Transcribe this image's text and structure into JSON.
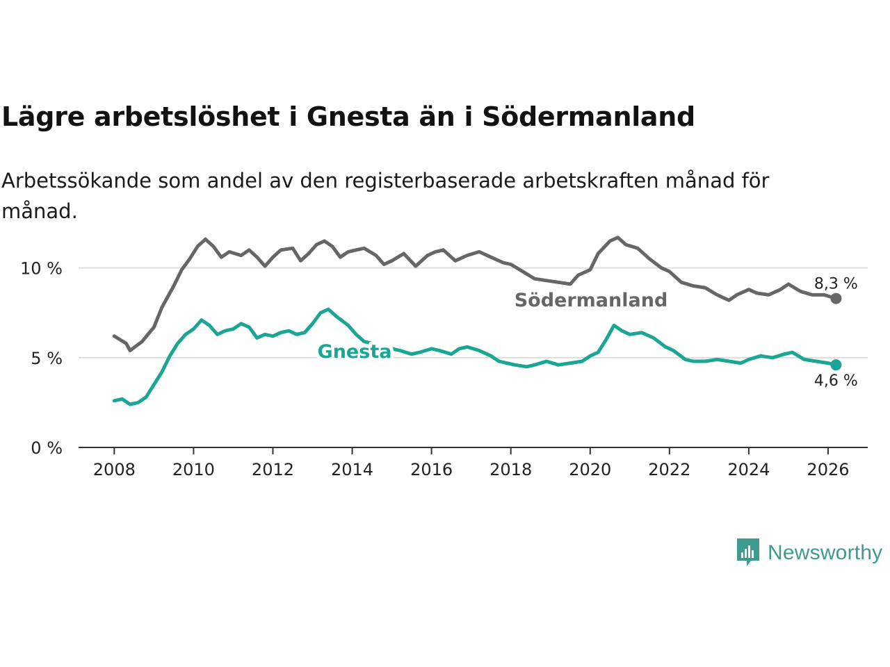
{
  "title": "Lägre arbetslöshet i Gnesta än i Södermanland",
  "subtitle": "Arbetssökande som andel av den registerbaserade arbetskraften månad för månad.",
  "brand": "Newsworthy",
  "colors": {
    "gnesta": "#1aa595",
    "sodermanland": "#666666",
    "axis": "#333333",
    "grid": "#dddddd"
  },
  "chart_data": {
    "type": "line",
    "title": "Lägre arbetslöshet i Gnesta än i Södermanland",
    "xlabel": "",
    "ylabel": "",
    "ylim": [
      0,
      12
    ],
    "xlim": [
      2007.1,
      2027.0
    ],
    "x_ticks": [
      2008,
      2010,
      2012,
      2014,
      2016,
      2018,
      2020,
      2022,
      2024,
      2026
    ],
    "x_tick_labels": [
      "2008",
      "2010",
      "2012",
      "2014",
      "2016",
      "2018",
      "2020",
      "2022",
      "2024",
      "2026"
    ],
    "y_ticks": [
      0,
      5,
      10
    ],
    "y_tick_labels": [
      "0 %",
      "5 %",
      "10 %"
    ],
    "grid": "horizontal",
    "series": [
      {
        "name": "Södermanland",
        "color": "#666666",
        "end_label": "8,3 %",
        "points": [
          [
            2008.0,
            6.2
          ],
          [
            2008.3,
            5.8
          ],
          [
            2008.4,
            5.4
          ],
          [
            2008.7,
            5.9
          ],
          [
            2009.0,
            6.7
          ],
          [
            2009.2,
            7.8
          ],
          [
            2009.5,
            9.0
          ],
          [
            2009.7,
            9.9
          ],
          [
            2009.9,
            10.5
          ],
          [
            2010.1,
            11.2
          ],
          [
            2010.3,
            11.6
          ],
          [
            2010.5,
            11.2
          ],
          [
            2010.7,
            10.6
          ],
          [
            2010.9,
            10.9
          ],
          [
            2011.2,
            10.7
          ],
          [
            2011.4,
            11.0
          ],
          [
            2011.6,
            10.6
          ],
          [
            2011.8,
            10.1
          ],
          [
            2012.0,
            10.6
          ],
          [
            2012.2,
            11.0
          ],
          [
            2012.5,
            11.1
          ],
          [
            2012.7,
            10.4
          ],
          [
            2012.9,
            10.8
          ],
          [
            2013.1,
            11.3
          ],
          [
            2013.3,
            11.5
          ],
          [
            2013.5,
            11.2
          ],
          [
            2013.7,
            10.6
          ],
          [
            2013.9,
            10.9
          ],
          [
            2014.1,
            11.0
          ],
          [
            2014.3,
            11.1
          ],
          [
            2014.6,
            10.7
          ],
          [
            2014.8,
            10.2
          ],
          [
            2015.0,
            10.4
          ],
          [
            2015.3,
            10.8
          ],
          [
            2015.6,
            10.1
          ],
          [
            2015.9,
            10.7
          ],
          [
            2016.1,
            10.9
          ],
          [
            2016.3,
            11.0
          ],
          [
            2016.6,
            10.4
          ],
          [
            2016.9,
            10.7
          ],
          [
            2017.2,
            10.9
          ],
          [
            2017.5,
            10.6
          ],
          [
            2017.8,
            10.3
          ],
          [
            2018.0,
            10.2
          ],
          [
            2018.3,
            9.8
          ],
          [
            2018.6,
            9.4
          ],
          [
            2018.9,
            9.3
          ],
          [
            2019.2,
            9.2
          ],
          [
            2019.5,
            9.1
          ],
          [
            2019.7,
            9.6
          ],
          [
            2020.0,
            9.9
          ],
          [
            2020.2,
            10.8
          ],
          [
            2020.5,
            11.5
          ],
          [
            2020.7,
            11.7
          ],
          [
            2020.9,
            11.3
          ],
          [
            2021.2,
            11.1
          ],
          [
            2021.5,
            10.5
          ],
          [
            2021.8,
            10.0
          ],
          [
            2022.0,
            9.8
          ],
          [
            2022.3,
            9.2
          ],
          [
            2022.6,
            9.0
          ],
          [
            2022.9,
            8.9
          ],
          [
            2023.2,
            8.5
          ],
          [
            2023.5,
            8.2
          ],
          [
            2023.7,
            8.5
          ],
          [
            2024.0,
            8.8
          ],
          [
            2024.2,
            8.6
          ],
          [
            2024.5,
            8.5
          ],
          [
            2024.8,
            8.8
          ],
          [
            2025.0,
            9.1
          ],
          [
            2025.3,
            8.7
          ],
          [
            2025.6,
            8.5
          ],
          [
            2025.9,
            8.5
          ],
          [
            2026.2,
            8.3
          ]
        ]
      },
      {
        "name": "Gnesta",
        "color": "#1aa595",
        "end_label": "4,6 %",
        "points": [
          [
            2008.0,
            2.6
          ],
          [
            2008.2,
            2.7
          ],
          [
            2008.4,
            2.4
          ],
          [
            2008.6,
            2.5
          ],
          [
            2008.8,
            2.8
          ],
          [
            2009.0,
            3.5
          ],
          [
            2009.2,
            4.2
          ],
          [
            2009.4,
            5.1
          ],
          [
            2009.6,
            5.8
          ],
          [
            2009.8,
            6.3
          ],
          [
            2010.0,
            6.6
          ],
          [
            2010.2,
            7.1
          ],
          [
            2010.4,
            6.8
          ],
          [
            2010.6,
            6.3
          ],
          [
            2010.8,
            6.5
          ],
          [
            2011.0,
            6.6
          ],
          [
            2011.2,
            6.9
          ],
          [
            2011.4,
            6.7
          ],
          [
            2011.6,
            6.1
          ],
          [
            2011.8,
            6.3
          ],
          [
            2012.0,
            6.2
          ],
          [
            2012.2,
            6.4
          ],
          [
            2012.4,
            6.5
          ],
          [
            2012.6,
            6.3
          ],
          [
            2012.8,
            6.4
          ],
          [
            2013.0,
            6.9
          ],
          [
            2013.2,
            7.5
          ],
          [
            2013.4,
            7.7
          ],
          [
            2013.6,
            7.3
          ],
          [
            2013.9,
            6.8
          ],
          [
            2014.1,
            6.3
          ],
          [
            2014.3,
            5.9
          ],
          [
            2014.5,
            5.8
          ],
          [
            2014.7,
            5.6
          ],
          [
            2015.0,
            5.5
          ],
          [
            2015.2,
            5.4
          ],
          [
            2015.5,
            5.2
          ],
          [
            2015.7,
            5.3
          ],
          [
            2016.0,
            5.5
          ],
          [
            2016.2,
            5.4
          ],
          [
            2016.5,
            5.2
          ],
          [
            2016.7,
            5.5
          ],
          [
            2016.9,
            5.6
          ],
          [
            2017.2,
            5.4
          ],
          [
            2017.5,
            5.1
          ],
          [
            2017.7,
            4.8
          ],
          [
            2017.9,
            4.7
          ],
          [
            2018.1,
            4.6
          ],
          [
            2018.4,
            4.5
          ],
          [
            2018.6,
            4.6
          ],
          [
            2018.9,
            4.8
          ],
          [
            2019.2,
            4.6
          ],
          [
            2019.5,
            4.7
          ],
          [
            2019.8,
            4.8
          ],
          [
            2020.0,
            5.1
          ],
          [
            2020.2,
            5.3
          ],
          [
            2020.4,
            6.0
          ],
          [
            2020.6,
            6.8
          ],
          [
            2020.8,
            6.5
          ],
          [
            2021.0,
            6.3
          ],
          [
            2021.3,
            6.4
          ],
          [
            2021.6,
            6.1
          ],
          [
            2021.9,
            5.6
          ],
          [
            2022.1,
            5.4
          ],
          [
            2022.4,
            4.9
          ],
          [
            2022.6,
            4.8
          ],
          [
            2022.9,
            4.8
          ],
          [
            2023.2,
            4.9
          ],
          [
            2023.5,
            4.8
          ],
          [
            2023.8,
            4.7
          ],
          [
            2024.0,
            4.9
          ],
          [
            2024.3,
            5.1
          ],
          [
            2024.6,
            5.0
          ],
          [
            2024.9,
            5.2
          ],
          [
            2025.1,
            5.3
          ],
          [
            2025.4,
            4.9
          ],
          [
            2025.7,
            4.8
          ],
          [
            2026.0,
            4.7
          ],
          [
            2026.2,
            4.6
          ]
        ]
      }
    ],
    "annotations": [
      {
        "text": "Södermanland",
        "series": "Södermanland"
      },
      {
        "text": "Gnesta",
        "series": "Gnesta"
      }
    ]
  }
}
